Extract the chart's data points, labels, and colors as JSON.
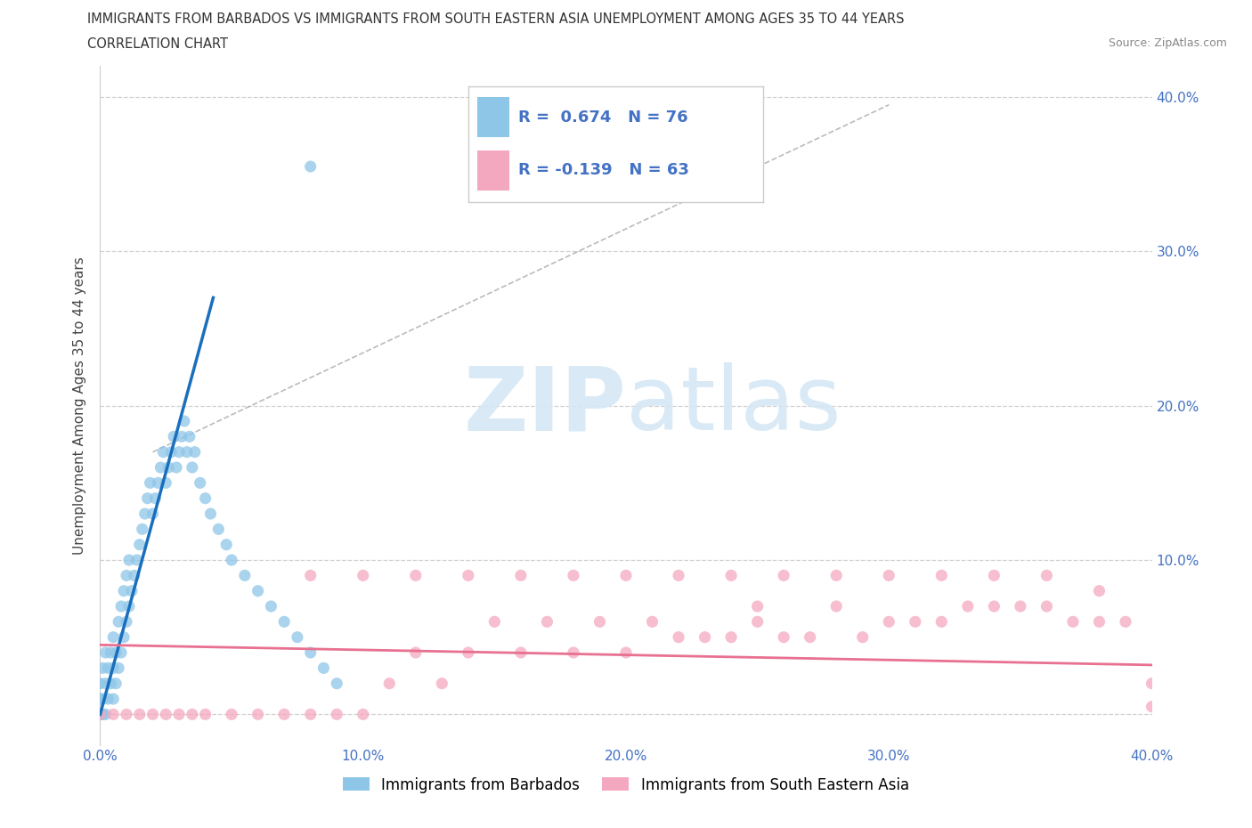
{
  "title_line1": "IMMIGRANTS FROM BARBADOS VS IMMIGRANTS FROM SOUTH EASTERN ASIA UNEMPLOYMENT AMONG AGES 35 TO 44 YEARS",
  "title_line2": "CORRELATION CHART",
  "source_text": "Source: ZipAtlas.com",
  "ylabel": "Unemployment Among Ages 35 to 44 years",
  "xlim": [
    0.0,
    0.4
  ],
  "ylim": [
    -0.02,
    0.42
  ],
  "xticks": [
    0.0,
    0.1,
    0.2,
    0.3,
    0.4
  ],
  "yticks": [
    0.0,
    0.1,
    0.2,
    0.3,
    0.4
  ],
  "xticklabels": [
    "0.0%",
    "10.0%",
    "20.0%",
    "30.0%",
    "40.0%"
  ],
  "right_yticklabels": [
    "",
    "10.0%",
    "20.0%",
    "30.0%",
    "40.0%"
  ],
  "color_blue": "#8ec6e8",
  "color_pink": "#f4a8bf",
  "color_blue_line": "#1a6fbd",
  "color_pink_line": "#e87090",
  "color_blue_text": "#4472c4",
  "watermark_color": "#d5e8f5",
  "grid_color": "#d0d0d0",
  "barbados_x": [
    0.0,
    0.0,
    0.0,
    0.0,
    0.0,
    0.0,
    0.0,
    0.0,
    0.0,
    0.0,
    0.001,
    0.001,
    0.001,
    0.002,
    0.002,
    0.002,
    0.003,
    0.003,
    0.004,
    0.004,
    0.005,
    0.005,
    0.005,
    0.006,
    0.006,
    0.007,
    0.007,
    0.008,
    0.008,
    0.009,
    0.009,
    0.01,
    0.01,
    0.011,
    0.011,
    0.012,
    0.013,
    0.014,
    0.015,
    0.016,
    0.017,
    0.018,
    0.019,
    0.02,
    0.021,
    0.022,
    0.023,
    0.024,
    0.025,
    0.026,
    0.027,
    0.028,
    0.029,
    0.03,
    0.031,
    0.032,
    0.033,
    0.034,
    0.035,
    0.036,
    0.038,
    0.04,
    0.042,
    0.045,
    0.048,
    0.05,
    0.055,
    0.06,
    0.065,
    0.07,
    0.075,
    0.08,
    0.085,
    0.09,
    0.08
  ],
  "barbados_y": [
    0.0,
    0.0,
    0.0,
    0.0,
    0.0,
    0.0,
    0.0,
    0.01,
    0.01,
    0.02,
    0.0,
    0.01,
    0.03,
    0.0,
    0.02,
    0.04,
    0.01,
    0.03,
    0.02,
    0.04,
    0.01,
    0.03,
    0.05,
    0.02,
    0.04,
    0.03,
    0.06,
    0.04,
    0.07,
    0.05,
    0.08,
    0.06,
    0.09,
    0.07,
    0.1,
    0.08,
    0.09,
    0.1,
    0.11,
    0.12,
    0.13,
    0.14,
    0.15,
    0.13,
    0.14,
    0.15,
    0.16,
    0.17,
    0.15,
    0.16,
    0.17,
    0.18,
    0.16,
    0.17,
    0.18,
    0.19,
    0.17,
    0.18,
    0.16,
    0.17,
    0.15,
    0.14,
    0.13,
    0.12,
    0.11,
    0.1,
    0.09,
    0.08,
    0.07,
    0.06,
    0.05,
    0.04,
    0.03,
    0.02,
    0.355
  ],
  "sea_x": [
    0.0,
    0.005,
    0.01,
    0.015,
    0.02,
    0.025,
    0.03,
    0.035,
    0.04,
    0.05,
    0.06,
    0.07,
    0.08,
    0.09,
    0.1,
    0.11,
    0.12,
    0.13,
    0.14,
    0.15,
    0.16,
    0.17,
    0.18,
    0.19,
    0.2,
    0.21,
    0.22,
    0.23,
    0.24,
    0.25,
    0.26,
    0.27,
    0.28,
    0.29,
    0.3,
    0.31,
    0.32,
    0.33,
    0.34,
    0.35,
    0.36,
    0.37,
    0.38,
    0.39,
    0.4,
    0.12,
    0.18,
    0.24,
    0.3,
    0.36,
    0.08,
    0.16,
    0.22,
    0.28,
    0.34,
    0.4,
    0.14,
    0.2,
    0.26,
    0.32,
    0.38,
    0.1,
    0.25
  ],
  "sea_y": [
    0.0,
    0.0,
    0.0,
    0.0,
    0.0,
    0.0,
    0.0,
    0.0,
    0.0,
    0.0,
    0.0,
    0.0,
    0.0,
    0.0,
    0.0,
    0.02,
    0.04,
    0.02,
    0.04,
    0.06,
    0.04,
    0.06,
    0.04,
    0.06,
    0.04,
    0.06,
    0.05,
    0.05,
    0.05,
    0.06,
    0.05,
    0.05,
    0.07,
    0.05,
    0.06,
    0.06,
    0.06,
    0.07,
    0.07,
    0.07,
    0.07,
    0.06,
    0.06,
    0.06,
    0.005,
    0.09,
    0.09,
    0.09,
    0.09,
    0.09,
    0.09,
    0.09,
    0.09,
    0.09,
    0.09,
    0.02,
    0.09,
    0.09,
    0.09,
    0.09,
    0.08,
    0.09,
    0.07
  ]
}
